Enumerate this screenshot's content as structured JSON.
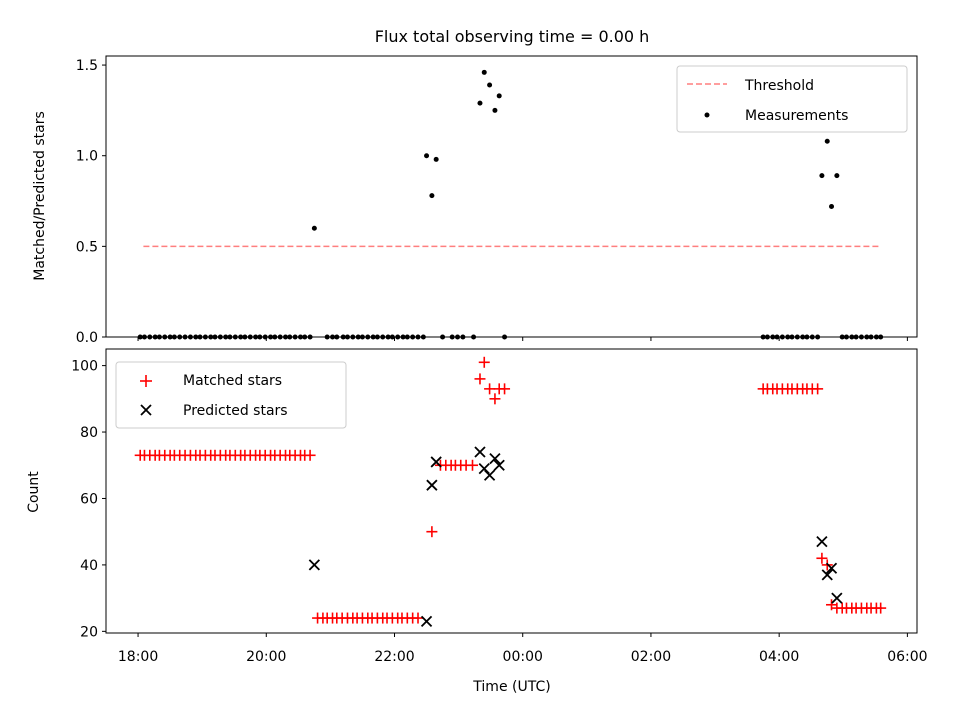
{
  "chart_data": [
    {
      "type": "scatter",
      "title": "Flux total observing time = 0.00 h",
      "xlabel": "",
      "ylabel": "Matched/Predicted stars",
      "ylim": [
        0,
        1.55
      ],
      "xlim_hours": [
        17.5,
        30.15
      ],
      "yticks": [
        0.0,
        0.5,
        1.0,
        1.5
      ],
      "ytick_labels": [
        "0.0",
        "0.5",
        "1.0",
        "1.5"
      ],
      "legend_position": "top-right",
      "threshold": {
        "name": "Threshold",
        "value": 0.5,
        "x_range": [
          "18:05",
          "05:35"
        ],
        "color": "#ff7f7f"
      },
      "series": [
        {
          "name": "Measurements",
          "color": "#000000",
          "points": [
            [
              "18:02",
              0
            ],
            [
              "18:06",
              0
            ],
            [
              "18:11",
              0
            ],
            [
              "18:16",
              0
            ],
            [
              "18:20",
              0
            ],
            [
              "18:25",
              0
            ],
            [
              "18:30",
              0
            ],
            [
              "18:34",
              0
            ],
            [
              "18:39",
              0
            ],
            [
              "18:44",
              0
            ],
            [
              "18:49",
              0
            ],
            [
              "18:54",
              0
            ],
            [
              "18:58",
              0
            ],
            [
              "19:03",
              0
            ],
            [
              "19:08",
              0
            ],
            [
              "19:12",
              0
            ],
            [
              "19:17",
              0
            ],
            [
              "19:22",
              0
            ],
            [
              "19:26",
              0
            ],
            [
              "19:31",
              0
            ],
            [
              "19:36",
              0
            ],
            [
              "19:40",
              0
            ],
            [
              "19:45",
              0
            ],
            [
              "19:50",
              0
            ],
            [
              "19:54",
              0
            ],
            [
              "19:59",
              0
            ],
            [
              "20:04",
              0
            ],
            [
              "20:08",
              0
            ],
            [
              "20:13",
              0
            ],
            [
              "20:18",
              0
            ],
            [
              "20:22",
              0
            ],
            [
              "20:27",
              0
            ],
            [
              "20:32",
              0
            ],
            [
              "20:36",
              0
            ],
            [
              "20:41",
              0
            ],
            [
              "20:45",
              0.6
            ],
            [
              "20:57",
              0
            ],
            [
              "21:02",
              0
            ],
            [
              "21:06",
              0
            ],
            [
              "21:12",
              0
            ],
            [
              "21:16",
              0
            ],
            [
              "21:21",
              0
            ],
            [
              "21:26",
              0
            ],
            [
              "21:30",
              0
            ],
            [
              "21:35",
              0
            ],
            [
              "21:40",
              0
            ],
            [
              "21:44",
              0
            ],
            [
              "21:49",
              0
            ],
            [
              "21:54",
              0
            ],
            [
              "21:58",
              0
            ],
            [
              "22:03",
              0
            ],
            [
              "22:08",
              0
            ],
            [
              "22:12",
              0
            ],
            [
              "22:17",
              0
            ],
            [
              "22:22",
              0
            ],
            [
              "22:27",
              0
            ],
            [
              "22:30",
              1.0
            ],
            [
              "22:35",
              0.78
            ],
            [
              "22:39",
              0.98
            ],
            [
              "22:45",
              0
            ],
            [
              "22:54",
              0
            ],
            [
              "22:59",
              0
            ],
            [
              "23:04",
              0
            ],
            [
              "23:14",
              0
            ],
            [
              "23:20",
              1.29
            ],
            [
              "23:24",
              1.46
            ],
            [
              "23:29",
              1.39
            ],
            [
              "23:34",
              1.25
            ],
            [
              "23:38",
              1.33
            ],
            [
              "23:43",
              0
            ],
            [
              "03:45",
              0
            ],
            [
              "03:49",
              0
            ],
            [
              "03:54",
              0
            ],
            [
              "03:58",
              0
            ],
            [
              "04:03",
              0
            ],
            [
              "04:08",
              0
            ],
            [
              "04:12",
              0
            ],
            [
              "04:17",
              0
            ],
            [
              "04:22",
              0
            ],
            [
              "04:26",
              0
            ],
            [
              "04:31",
              0
            ],
            [
              "04:36",
              0
            ],
            [
              "04:40",
              0.89
            ],
            [
              "04:45",
              1.08
            ],
            [
              "04:49",
              0.72
            ],
            [
              "04:54",
              0.89
            ],
            [
              "04:59",
              0
            ],
            [
              "05:03",
              0
            ],
            [
              "05:08",
              0
            ],
            [
              "05:12",
              0
            ],
            [
              "05:17",
              0
            ],
            [
              "05:22",
              0
            ],
            [
              "05:26",
              0
            ],
            [
              "05:31",
              0
            ],
            [
              "05:35",
              0
            ]
          ]
        }
      ]
    },
    {
      "type": "scatter",
      "title": "",
      "xlabel": "Time (UTC)",
      "ylabel": "Count",
      "ylim": [
        19.5,
        105
      ],
      "xlim_hours": [
        17.5,
        30.15
      ],
      "yticks": [
        20,
        40,
        60,
        80,
        100
      ],
      "ytick_labels": [
        "20",
        "40",
        "60",
        "80",
        "100"
      ],
      "xticks_hours": [
        18,
        20,
        22,
        24,
        26,
        28,
        30
      ],
      "xtick_labels": [
        "18:00",
        "20:00",
        "22:00",
        "00:00",
        "02:00",
        "04:00",
        "06:00"
      ],
      "legend_position": "top-left",
      "series": [
        {
          "name": "Matched stars",
          "color": "#ff0000",
          "marker": "plus",
          "points": [
            [
              "18:02",
              73
            ],
            [
              "18:06",
              73
            ],
            [
              "18:11",
              73
            ],
            [
              "18:16",
              73
            ],
            [
              "18:20",
              73
            ],
            [
              "18:25",
              73
            ],
            [
              "18:30",
              73
            ],
            [
              "18:34",
              73
            ],
            [
              "18:39",
              73
            ],
            [
              "18:44",
              73
            ],
            [
              "18:49",
              73
            ],
            [
              "18:54",
              73
            ],
            [
              "18:58",
              73
            ],
            [
              "19:03",
              73
            ],
            [
              "19:08",
              73
            ],
            [
              "19:12",
              73
            ],
            [
              "19:17",
              73
            ],
            [
              "19:22",
              73
            ],
            [
              "19:26",
              73
            ],
            [
              "19:31",
              73
            ],
            [
              "19:36",
              73
            ],
            [
              "19:40",
              73
            ],
            [
              "19:45",
              73
            ],
            [
              "19:50",
              73
            ],
            [
              "19:54",
              73
            ],
            [
              "19:59",
              73
            ],
            [
              "20:04",
              73
            ],
            [
              "20:08",
              73
            ],
            [
              "20:13",
              73
            ],
            [
              "20:18",
              73
            ],
            [
              "20:22",
              73
            ],
            [
              "20:27",
              73
            ],
            [
              "20:32",
              73
            ],
            [
              "20:36",
              73
            ],
            [
              "20:41",
              73
            ],
            [
              "20:48",
              24
            ],
            [
              "20:53",
              24
            ],
            [
              "20:57",
              24
            ],
            [
              "21:02",
              24
            ],
            [
              "21:06",
              24
            ],
            [
              "21:11",
              24
            ],
            [
              "21:16",
              24
            ],
            [
              "21:21",
              24
            ],
            [
              "21:25",
              24
            ],
            [
              "21:30",
              24
            ],
            [
              "21:35",
              24
            ],
            [
              "21:39",
              24
            ],
            [
              "21:44",
              24
            ],
            [
              "21:49",
              24
            ],
            [
              "21:53",
              24
            ],
            [
              "21:58",
              24
            ],
            [
              "22:03",
              24
            ],
            [
              "22:07",
              24
            ],
            [
              "22:12",
              24
            ],
            [
              "22:17",
              24
            ],
            [
              "22:22",
              24
            ],
            [
              "22:35",
              50
            ],
            [
              "22:43",
              70
            ],
            [
              "22:48",
              70
            ],
            [
              "22:53",
              70
            ],
            [
              "22:57",
              70
            ],
            [
              "23:02",
              70
            ],
            [
              "23:07",
              70
            ],
            [
              "23:13",
              70
            ],
            [
              "23:20",
              96
            ],
            [
              "23:24",
              101
            ],
            [
              "23:29",
              93
            ],
            [
              "23:34",
              90
            ],
            [
              "23:38",
              93
            ],
            [
              "23:43",
              93
            ],
            [
              "03:45",
              93
            ],
            [
              "03:49",
              93
            ],
            [
              "03:54",
              93
            ],
            [
              "03:58",
              93
            ],
            [
              "04:03",
              93
            ],
            [
              "04:08",
              93
            ],
            [
              "04:12",
              93
            ],
            [
              "04:17",
              93
            ],
            [
              "04:22",
              93
            ],
            [
              "04:26",
              93
            ],
            [
              "04:31",
              93
            ],
            [
              "04:36",
              93
            ],
            [
              "04:40",
              42
            ],
            [
              "04:45",
              40
            ],
            [
              "04:49",
              28
            ],
            [
              "04:54",
              27
            ],
            [
              "04:59",
              27
            ],
            [
              "05:03",
              27
            ],
            [
              "05:08",
              27
            ],
            [
              "05:12",
              27
            ],
            [
              "05:17",
              27
            ],
            [
              "05:22",
              27
            ],
            [
              "05:26",
              27
            ],
            [
              "05:31",
              27
            ],
            [
              "05:35",
              27
            ]
          ]
        },
        {
          "name": "Predicted stars",
          "color": "#000000",
          "marker": "x",
          "points": [
            [
              "20:45",
              40
            ],
            [
              "22:30",
              23
            ],
            [
              "22:35",
              64
            ],
            [
              "22:39",
              71
            ],
            [
              "23:20",
              74
            ],
            [
              "23:24",
              69
            ],
            [
              "23:29",
              67
            ],
            [
              "23:34",
              72
            ],
            [
              "23:38",
              70
            ],
            [
              "04:40",
              47
            ],
            [
              "04:45",
              37
            ],
            [
              "04:49",
              39
            ],
            [
              "04:54",
              30
            ]
          ]
        }
      ]
    }
  ]
}
